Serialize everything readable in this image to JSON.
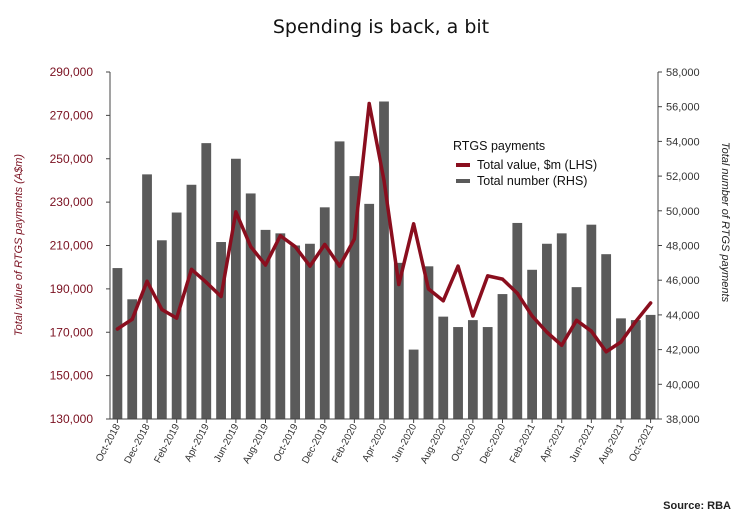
{
  "chart_data": {
    "type": "bar",
    "title": "Spending is back, a bit",
    "source": "Source: RBA",
    "x": [
      "Oct-2018",
      "Nov-2018",
      "Dec-2018",
      "Jan-2019",
      "Feb-2019",
      "Mar-2019",
      "Apr-2019",
      "May-2019",
      "Jun-2019",
      "Jul-2019",
      "Aug-2019",
      "Sep-2019",
      "Oct-2019",
      "Nov-2019",
      "Dec-2019",
      "Jan-2020",
      "Feb-2020",
      "Mar-2020",
      "Apr-2020",
      "May-2020",
      "Jun-2020",
      "Jul-2020",
      "Aug-2020",
      "Sep-2020",
      "Oct-2020",
      "Nov-2020",
      "Dec-2020",
      "Jan-2021",
      "Feb-2021",
      "Mar-2021",
      "Apr-2021",
      "May-2021",
      "Jun-2021",
      "Jul-2021",
      "Aug-2021",
      "Sep-2021",
      "Oct-2021"
    ],
    "x_tick_labels": [
      "Oct-2018",
      "Dec-2018",
      "Feb-2019",
      "Apr-2019",
      "Jun-2019",
      "Aug-2019",
      "Oct-2019",
      "Dec-2019",
      "Feb-2020",
      "Apr-2020",
      "Jun-2020",
      "Aug-2020",
      "Oct-2020",
      "Dec-2020",
      "Feb-2021",
      "Apr-2021",
      "Jun-2021",
      "Aug-2021",
      "Oct-2021"
    ],
    "series": [
      {
        "name": "Total number (RHS)",
        "kind": "bar",
        "axis": "right",
        "color": "#5a5a5a",
        "values": [
          46700,
          44900,
          52100,
          48300,
          49900,
          51500,
          53900,
          48200,
          53000,
          51000,
          48900,
          48700,
          48000,
          48100,
          50200,
          54000,
          52000,
          50400,
          56300,
          47000,
          42000,
          46800,
          43900,
          43300,
          43700,
          43300,
          45200,
          49300,
          46600,
          48100,
          48700,
          45600,
          49200,
          47500,
          43800,
          43700,
          44000
        ]
      },
      {
        "name": "Total value, $m (LHS)",
        "kind": "line",
        "axis": "left",
        "color": "#8a0e1e",
        "values": [
          171500,
          176000,
          193500,
          180500,
          176500,
          199000,
          193000,
          186500,
          225500,
          209500,
          201000,
          214500,
          209500,
          200500,
          210500,
          200500,
          213000,
          275500,
          240000,
          192000,
          220000,
          190000,
          184500,
          200500,
          177500,
          196000,
          194500,
          188000,
          177500,
          170000,
          164000,
          175500,
          170500,
          161000,
          165500,
          175000,
          183500
        ]
      }
    ],
    "legend": {
      "title": "RTGS payments",
      "items": [
        "Total value, $m (LHS)",
        "Total number (RHS)"
      ],
      "placement": "top-right"
    },
    "y_left": {
      "label": "Total value of RTGS payments (A$m)",
      "ticks": [
        "130,000",
        "150,000",
        "170,000",
        "190,000",
        "210,000",
        "230,000",
        "250,000",
        "270,000",
        "290,000"
      ],
      "range": [
        130000,
        290000
      ]
    },
    "y_right": {
      "label": "Total number of RTGS payments",
      "ticks": [
        "38,000",
        "40,000",
        "42,000",
        "44,000",
        "46,000",
        "48,000",
        "50,000",
        "52,000",
        "54,000",
        "56,000",
        "58,000"
      ],
      "range": [
        38000,
        58000
      ]
    },
    "grid": false
  }
}
